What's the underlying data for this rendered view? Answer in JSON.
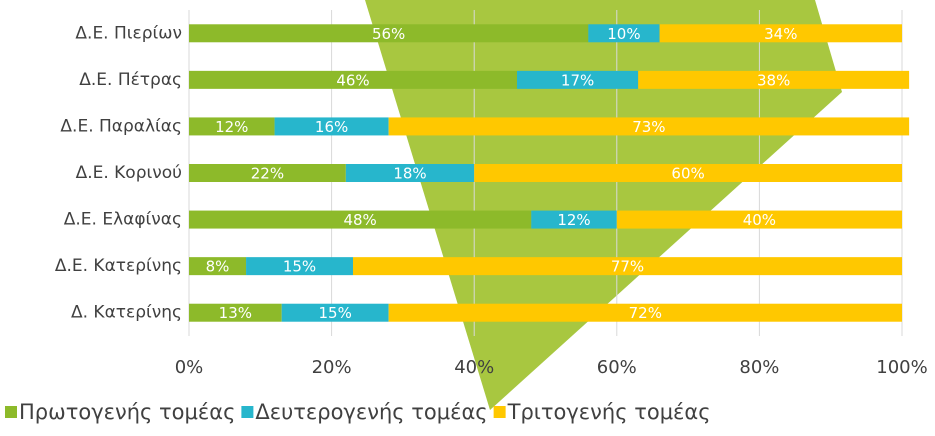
{
  "chart_data": {
    "type": "bar",
    "orientation": "horizontal",
    "stacked": true,
    "categories": [
      "Δ.Ε. Πιερίων",
      "Δ.Ε. Πέτρας",
      "Δ.Ε. Παραλίας",
      "Δ.Ε. Κορινού",
      "Δ.Ε. Ελαφίνας",
      "Δ.Ε. Κατερίνης",
      "Δ. Κατερίνης"
    ],
    "series": [
      {
        "name": "Πρωτογενής τομέας",
        "color": "#8dba2a",
        "values": [
          56,
          46,
          12,
          22,
          48,
          8,
          13
        ],
        "value_labels": [
          "56%",
          "46%",
          "12%",
          "22%",
          "48%",
          "8%",
          "13%"
        ]
      },
      {
        "name": "Δευτερογενής τομέας",
        "color": "#27b6cc",
        "values": [
          10,
          17,
          16,
          18,
          12,
          15,
          15
        ],
        "value_labels": [
          "10%",
          "17%",
          "16%",
          "18%",
          "12%",
          "15%",
          "15%"
        ]
      },
      {
        "name": "Τριτογενής τομέας",
        "color": "#ffc800",
        "values": [
          34,
          38,
          73,
          60,
          40,
          77,
          72
        ],
        "value_labels": [
          "34%",
          "38%",
          "73%",
          "60%",
          "40%",
          "77%",
          "72%"
        ]
      }
    ],
    "xlim": [
      0,
      100
    ],
    "xticks": [
      {
        "value": 0,
        "label": "0%"
      },
      {
        "value": 20,
        "label": "20%"
      },
      {
        "value": 40,
        "label": "40%"
      },
      {
        "value": 60,
        "label": "60%"
      },
      {
        "value": 80,
        "label": "80%"
      },
      {
        "value": 100,
        "label": "100%"
      }
    ],
    "grid": true,
    "legend": "bottom"
  }
}
